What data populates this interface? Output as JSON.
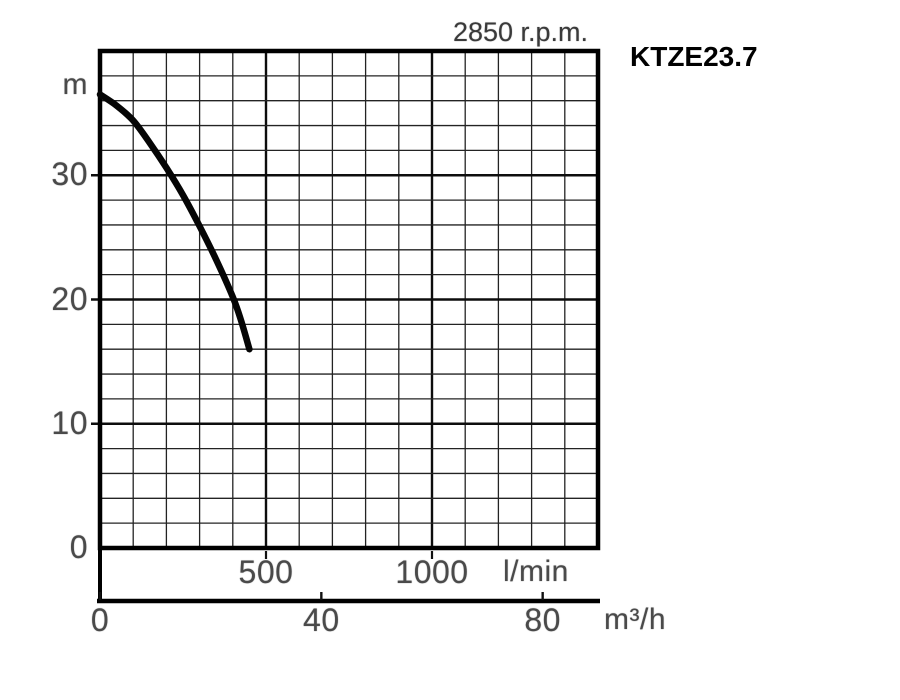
{
  "chart_data": {
    "type": "line",
    "title": "2850 r.p.m.",
    "series_label": "KTZE23.7",
    "grid": "on",
    "y_axis": {
      "label": "m",
      "ticks": [
        30,
        20,
        10,
        0
      ],
      "range": [
        0,
        40
      ],
      "minor_step_m": 2
    },
    "x_axis_lmin": {
      "label": "l/min",
      "ticks": [
        500,
        1000
      ],
      "range": [
        0,
        1500
      ],
      "minor_step": 100,
      "major_step": 500
    },
    "x_axis_m3h": {
      "label": "m³/h",
      "ticks": [
        0,
        40,
        80
      ],
      "range": [
        0,
        90
      ]
    },
    "series": [
      {
        "name": "KTZE23.7 head-flow curve",
        "x_lmin": [
          0,
          50,
          100,
          150,
          200,
          250,
          300,
          350,
          400,
          425,
          450
        ],
        "head_m": [
          36.5,
          35.6,
          34.4,
          32.6,
          30.6,
          28.4,
          25.9,
          23.2,
          20.2,
          18.3,
          16.0
        ]
      }
    ]
  }
}
